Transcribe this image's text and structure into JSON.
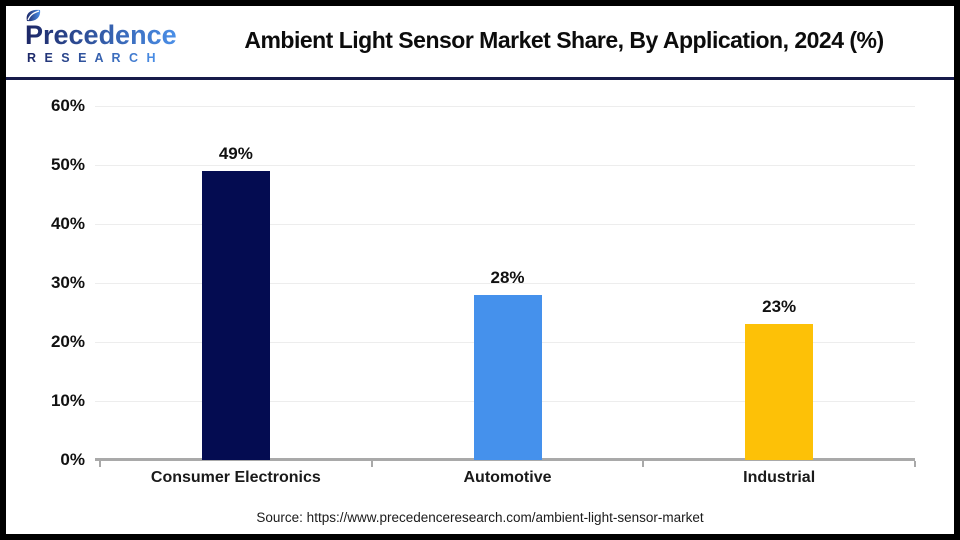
{
  "header": {
    "logo_name": "Precedence",
    "logo_sub": "R E S E A R C H",
    "title": "Ambient Light Sensor Market Share, By Application, 2024 (%)"
  },
  "chart_data": {
    "type": "bar",
    "title": "Ambient Light Sensor Market Share, By Application, 2024 (%)",
    "categories": [
      "Consumer Electronics",
      "Automotive",
      "Industrial"
    ],
    "values": [
      49,
      28,
      23
    ],
    "value_labels": [
      "49%",
      "28%",
      "23%"
    ],
    "bar_colors": [
      "#040c51",
      "#4591ec",
      "#fdc107"
    ],
    "xlabel": "",
    "ylabel": "",
    "ylim": [
      0,
      60
    ],
    "ytick_labels": [
      "0%",
      "10%",
      "20%",
      "30%",
      "40%",
      "50%",
      "60%"
    ],
    "grid": true,
    "legend": false
  },
  "footer": {
    "source": "Source: https://www.precedenceresearch.com/ambient-light-sensor-market"
  },
  "colors": {
    "logo_dark": "#1d2766",
    "logo_light": "#4a8fe8",
    "header_rule": "#171b4a",
    "axis": "#a9a9a9",
    "gridline": "#ededed",
    "frame_border": "#000000"
  }
}
